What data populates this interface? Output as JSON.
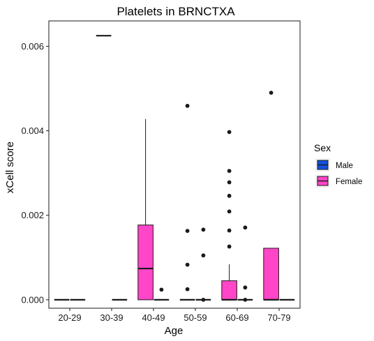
{
  "chart_data": {
    "type": "boxplot",
    "title": "Platelets in BRNCTXA",
    "xlabel": "Age",
    "ylabel": "xCell score",
    "categories": [
      "20-29",
      "30-39",
      "40-49",
      "50-59",
      "60-69",
      "70-79"
    ],
    "ylim": [
      -0.0002,
      0.0066
    ],
    "yticks": [
      0.0,
      0.002,
      0.004,
      0.006
    ],
    "ytick_labels": [
      "0.000",
      "0.002",
      "0.004",
      "0.006"
    ],
    "grid": false,
    "legend": {
      "title": "Sex",
      "placement": "right",
      "entries": [
        {
          "label": "Male",
          "color": "#1450e0"
        },
        {
          "label": "Female",
          "color": "#ff45c8"
        }
      ]
    },
    "series": [
      {
        "name": "Male",
        "color": "#1450e0",
        "boxes": [
          {
            "category": "20-29",
            "min": 0,
            "q1": 0,
            "median": 0,
            "q3": 0,
            "max": 0,
            "outliers": []
          },
          {
            "category": "30-39",
            "min": 0.00625,
            "q1": 0.00625,
            "median": 0.00625,
            "q3": 0.00625,
            "max": 0.00625,
            "outliers": []
          }
        ]
      },
      {
        "name": "Female",
        "color": "#ff45c8",
        "boxes": [
          {
            "category": "20-29",
            "min": 0,
            "q1": 0,
            "median": 0,
            "q3": 0,
            "max": 0,
            "outliers": []
          },
          {
            "category": "30-39",
            "min": 0,
            "q1": 0,
            "median": 0,
            "q3": 0,
            "max": 0,
            "outliers": []
          },
          {
            "category": "40-49",
            "min": 0,
            "q1": 0,
            "median": 0.00074,
            "q3": 0.00177,
            "max": 0.00428,
            "outliers": []
          },
          {
            "category": "40-49",
            "min": 0,
            "q1": 0,
            "median": 0,
            "q3": 0,
            "max": 0,
            "outliers": [
              0.00024
            ]
          },
          {
            "category": "50-59",
            "min": 0,
            "q1": 0,
            "median": 0,
            "q3": 0,
            "max": 0,
            "outliers": [
              0.00459,
              0.00163,
              0.00083,
              0.00025
            ]
          },
          {
            "category": "50-59",
            "min": 0,
            "q1": 0,
            "median": 0,
            "q3": 0,
            "max": 0,
            "outliers": [
              0.00166,
              0.00105,
              0.0
            ]
          },
          {
            "category": "60-69",
            "min": 0,
            "q1": 0,
            "median": 0,
            "q3": 0.00045,
            "max": 0.00084,
            "outliers": [
              0.00397,
              0.00305,
              0.00278,
              0.00246,
              0.00209,
              0.00164,
              0.00126
            ]
          },
          {
            "category": "60-69",
            "min": 0,
            "q1": 0,
            "median": 0,
            "q3": 0,
            "max": 0,
            "outliers": [
              0.00171,
              0.00029,
              0.0
            ]
          },
          {
            "category": "70-79",
            "min": 0,
            "q1": 0,
            "median": 0,
            "q3": 0.00122,
            "max": 0.00122,
            "outliers": [
              0.0049
            ]
          },
          {
            "category": "70-79",
            "min": 0,
            "q1": 0,
            "median": 0,
            "q3": 0,
            "max": 0,
            "outliers": []
          }
        ]
      }
    ]
  }
}
